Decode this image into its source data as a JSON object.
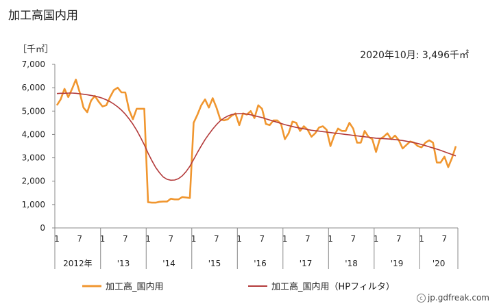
{
  "title": "加工高国内用",
  "credit": {
    "text": "jp.gdfreak.com",
    "icon": "copyright-icon"
  },
  "chart_data": {
    "type": "line",
    "unit_label": "［千㎡］",
    "annotation": "2020年10月: 3,496千㎡",
    "ylim": [
      0,
      7000
    ],
    "yticks": [
      0,
      1000,
      2000,
      3000,
      4000,
      5000,
      6000,
      7000
    ],
    "ytick_labels": [
      "0",
      "1,000",
      "2,000",
      "3,000",
      "4,000",
      "5,000",
      "6,000",
      "7,000"
    ],
    "xtick_months": [
      "1",
      "7",
      "1",
      "7",
      "1",
      "7",
      "1",
      "7",
      "1",
      "7",
      "1",
      "7",
      "1",
      "7",
      "1",
      "7",
      "1",
      "7"
    ],
    "year_labels": [
      "2012年",
      "'13",
      "'14",
      "'15",
      "'16",
      "'17",
      "'18",
      "'19",
      "'20"
    ],
    "start": "2012-01",
    "end": "2020-10",
    "colors": {
      "actual": "#f0962f",
      "trend": "#b33a3a",
      "axis": "#888888"
    },
    "series": [
      {
        "name": "加工高_国内用",
        "values": [
          5250,
          5500,
          5950,
          5600,
          5950,
          6350,
          5800,
          5150,
          4950,
          5450,
          5650,
          5400,
          5200,
          5250,
          5600,
          5900,
          6000,
          5800,
          5800,
          5050,
          4650,
          5100,
          5100,
          5100,
          1100,
          1080,
          1080,
          1120,
          1130,
          1130,
          1250,
          1220,
          1220,
          1320,
          1300,
          1280,
          4500,
          4850,
          5250,
          5500,
          5150,
          5550,
          5150,
          4650,
          4600,
          4650,
          4800,
          4900,
          4400,
          4900,
          4850,
          5000,
          4700,
          5250,
          5100,
          4450,
          4400,
          4600,
          4600,
          4450,
          3800,
          4050,
          4550,
          4500,
          4150,
          4350,
          4200,
          3900,
          4050,
          4300,
          4350,
          4200,
          3500,
          3950,
          4250,
          4150,
          4150,
          4500,
          4250,
          3650,
          3650,
          4150,
          3900,
          3800,
          3250,
          3800,
          3900,
          4050,
          3800,
          3950,
          3750,
          3400,
          3550,
          3700,
          3650,
          3500,
          3450,
          3650,
          3750,
          3650,
          2800,
          2800,
          3050,
          2600,
          3000,
          3496
        ]
      },
      {
        "name": "加工高_国内用（HPフィルタ）",
        "values": [
          5750,
          5760,
          5760,
          5770,
          5770,
          5760,
          5740,
          5720,
          5700,
          5670,
          5640,
          5600,
          5550,
          5480,
          5400,
          5300,
          5180,
          5040,
          4870,
          4670,
          4440,
          4180,
          3880,
          3560,
          3200,
          2880,
          2590,
          2360,
          2180,
          2080,
          2040,
          2050,
          2110,
          2230,
          2410,
          2640,
          2930,
          3230,
          3510,
          3780,
          4010,
          4230,
          4420,
          4580,
          4700,
          4790,
          4850,
          4880,
          4890,
          4890,
          4870,
          4840,
          4800,
          4760,
          4720,
          4670,
          4620,
          4570,
          4520,
          4470,
          4420,
          4380,
          4340,
          4300,
          4270,
          4240,
          4210,
          4180,
          4160,
          4140,
          4120,
          4100,
          4080,
          4060,
          4040,
          4020,
          4000,
          3980,
          3960,
          3940,
          3920,
          3900,
          3880,
          3860,
          3840,
          3830,
          3820,
          3810,
          3800,
          3780,
          3760,
          3740,
          3710,
          3680,
          3650,
          3610,
          3570,
          3520,
          3470,
          3420,
          3370,
          3320,
          3260,
          3200,
          3140,
          3080
        ]
      }
    ],
    "legend": [
      "加工高_国内用",
      "加工高_国内用（HPフィルタ）"
    ],
    "legend_position": "bottom"
  }
}
